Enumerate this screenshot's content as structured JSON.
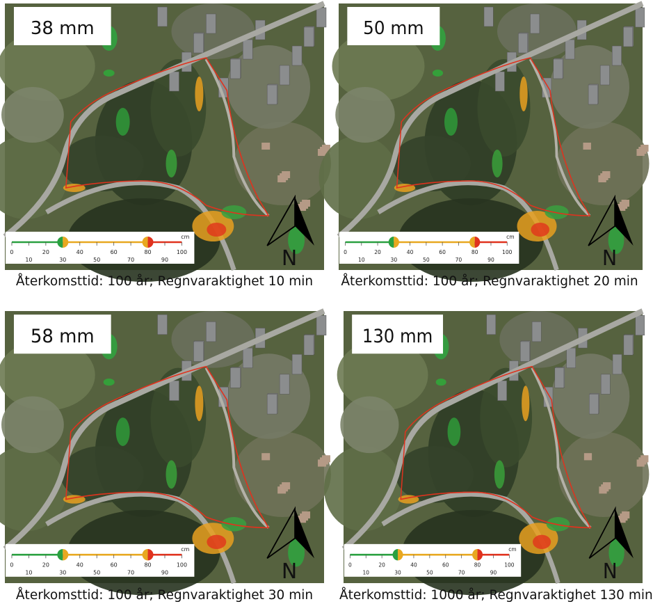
{
  "panels": [
    {
      "label": "38 mm",
      "caption": "Återkomsttid: 100 år; Regnvaraktighet 10 min"
    },
    {
      "label": "50 mm",
      "caption": "Återkomsttid: 100 år; Regnvaraktighet 20 min"
    },
    {
      "label": "58 mm",
      "caption": "Återkomsttid: 100 år; Regnvaraktighet 30 min"
    },
    {
      "label": "130 mm",
      "caption": "Återkomsttid: 1000 år; Regnvaraktighet 130 min"
    }
  ],
  "legend": {
    "unit": "cm",
    "upper_ticks": [
      0,
      20,
      40,
      60,
      80,
      100
    ],
    "lower_ticks": [
      10,
      30,
      50,
      70,
      90
    ],
    "markers": [
      30,
      80
    ]
  },
  "north_label": "N"
}
